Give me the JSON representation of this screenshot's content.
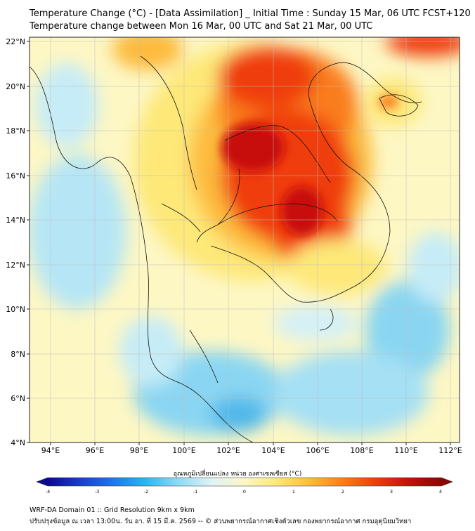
{
  "title_line1": "Temperature Change (°C) - [Data Assimilation] _ Initial Time : Sunday 15 Mar, 06 UTC FCST+120",
  "title_line2": "Temperature change between Mon 16 Mar, 00 UTC and Sat 21 Mar, 00 UTC",
  "x_ticks": [
    "94°E",
    "96°E",
    "98°E",
    "100°E",
    "102°E",
    "104°E",
    "106°E",
    "108°E",
    "110°E",
    "112°E"
  ],
  "y_ticks": [
    "22°N",
    "20°N",
    "18°N",
    "16°N",
    "14°N",
    "12°N",
    "10°N",
    "8°N",
    "6°N",
    "4°N"
  ],
  "colorbar": {
    "label": "อุณหภูมิเปลี่ยนแปลง หน่วย องศาเซลเซียส (°C)",
    "ticks": [
      "-4",
      "-3",
      "-2",
      "-1",
      "0",
      "1",
      "2",
      "3",
      "4"
    ],
    "colors": [
      "#0a0a8c",
      "#1a3fc8",
      "#1e78e6",
      "#2eb6f2",
      "#8fdcf5",
      "#dff3f8",
      "#fdf7c4",
      "#fde878",
      "#fdbb3c",
      "#fa7d1c",
      "#f03c0c",
      "#c81008",
      "#8c0404"
    ]
  },
  "footer_line1": "WRF-DA Domain 01 :: Grid Resolution 9km x 9km",
  "footer_line2": "ปรับปรุงข้อมูล ณ เวลา 13:00น. วัน อา. ที่ 15 มี.ค. 2569 -- © ส่วนพยากรณ์อากาศเชิงตัวเลข กองพยากรณ์อากาศ กรมอุตุนิยมวิทยา"
}
